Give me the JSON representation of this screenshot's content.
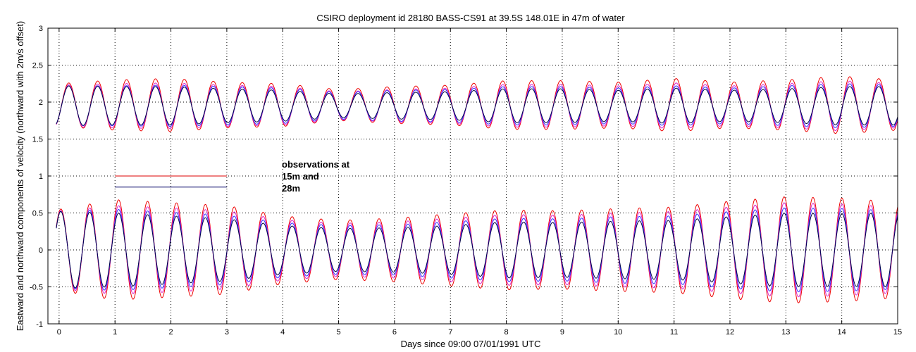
{
  "chart_data": {
    "type": "line",
    "title": "CSIRO deployment id 28180 BASS-CS91 at 39.5S 148.01E in 47m of water",
    "xlabel": "Days since 09:00 07/01/1991 UTC",
    "ylabel": "Eastward  and northward components of velocity (northward with 2m/s offset)",
    "xlim": [
      -0.2,
      15
    ],
    "ylim": [
      -1,
      3
    ],
    "x_ticks": [
      "0",
      "1",
      "2",
      "3",
      "4",
      "5",
      "6",
      "7",
      "8",
      "9",
      "10",
      "11",
      "12",
      "13",
      "14",
      "15"
    ],
    "y_ticks": [
      "-1",
      "-0.5",
      "0",
      "0.5",
      "1",
      "1.5",
      "2",
      "2.5",
      "3"
    ],
    "grid": "dotted",
    "annotation": {
      "lines": [
        "observations at",
        "15m and",
        "28m"
      ],
      "x": 4.0,
      "y": 1.0
    },
    "legend_key": [
      {
        "color": "#dd0000",
        "x": [
          1,
          3
        ],
        "y": 1.0
      },
      {
        "color": "#000066",
        "x": [
          1,
          3
        ],
        "y": 0.85
      }
    ],
    "tidal_period_days": 0.5175,
    "x_range": [
      -0.05,
      15.0
    ],
    "series": [
      {
        "color": "#ee0000",
        "component": "northward_offset",
        "mean": 1.96,
        "amplitude": [
          [
            0,
            0.29
          ],
          [
            1,
            0.34
          ],
          [
            2,
            0.36
          ],
          [
            3,
            0.31
          ],
          [
            4,
            0.29
          ],
          [
            5,
            0.21
          ],
          [
            6,
            0.25
          ],
          [
            7,
            0.27
          ],
          [
            8,
            0.33
          ],
          [
            9,
            0.33
          ],
          [
            10,
            0.31
          ],
          [
            11,
            0.36
          ],
          [
            12,
            0.31
          ],
          [
            13,
            0.34
          ],
          [
            14,
            0.39
          ],
          [
            15,
            0.34
          ]
        ]
      },
      {
        "color": "#dd22cc",
        "component": "northward_offset",
        "mean": 1.95,
        "amplitude": [
          [
            0,
            0.28
          ],
          [
            1,
            0.3
          ],
          [
            2,
            0.31
          ],
          [
            3,
            0.28
          ],
          [
            4,
            0.26
          ],
          [
            5,
            0.19
          ],
          [
            6,
            0.22
          ],
          [
            7,
            0.24
          ],
          [
            8,
            0.29
          ],
          [
            9,
            0.29
          ],
          [
            10,
            0.27
          ],
          [
            11,
            0.31
          ],
          [
            12,
            0.27
          ],
          [
            13,
            0.3
          ],
          [
            14,
            0.34
          ],
          [
            15,
            0.3
          ]
        ]
      },
      {
        "color": "#3333ff",
        "component": "northward_offset",
        "mean": 1.95,
        "amplitude": [
          [
            0,
            0.27
          ],
          [
            1,
            0.27
          ],
          [
            2,
            0.28
          ],
          [
            3,
            0.26
          ],
          [
            4,
            0.24
          ],
          [
            5,
            0.18
          ],
          [
            6,
            0.21
          ],
          [
            7,
            0.22
          ],
          [
            8,
            0.26
          ],
          [
            9,
            0.26
          ],
          [
            10,
            0.24
          ],
          [
            11,
            0.27
          ],
          [
            12,
            0.24
          ],
          [
            13,
            0.27
          ],
          [
            14,
            0.3
          ],
          [
            15,
            0.28
          ]
        ]
      },
      {
        "color": "#000044",
        "component": "northward_offset",
        "mean": 1.95,
        "amplitude": [
          [
            0,
            0.27
          ],
          [
            1,
            0.26
          ],
          [
            2,
            0.26
          ],
          [
            3,
            0.23
          ],
          [
            4,
            0.21
          ],
          [
            5,
            0.16
          ],
          [
            6,
            0.18
          ],
          [
            7,
            0.19
          ],
          [
            8,
            0.23
          ],
          [
            9,
            0.23
          ],
          [
            10,
            0.21
          ],
          [
            11,
            0.24
          ],
          [
            12,
            0.21
          ],
          [
            13,
            0.23
          ],
          [
            14,
            0.26
          ],
          [
            15,
            0.26
          ]
        ]
      },
      {
        "color": "#ee0000",
        "component": "eastward",
        "mean": 0.0,
        "amplitude": [
          [
            0,
            0.55
          ],
          [
            1,
            0.68
          ],
          [
            2,
            0.64
          ],
          [
            3,
            0.6
          ],
          [
            4,
            0.46
          ],
          [
            5,
            0.4
          ],
          [
            6,
            0.43
          ],
          [
            7,
            0.49
          ],
          [
            8,
            0.54
          ],
          [
            9,
            0.53
          ],
          [
            10,
            0.56
          ],
          [
            11,
            0.58
          ],
          [
            12,
            0.66
          ],
          [
            13,
            0.72
          ],
          [
            14,
            0.7
          ],
          [
            15,
            0.65
          ]
        ]
      },
      {
        "color": "#dd22cc",
        "component": "eastward",
        "mean": 0.0,
        "amplitude": [
          [
            0,
            0.53
          ],
          [
            1,
            0.6
          ],
          [
            2,
            0.57
          ],
          [
            3,
            0.53
          ],
          [
            4,
            0.41
          ],
          [
            5,
            0.36
          ],
          [
            6,
            0.38
          ],
          [
            7,
            0.43
          ],
          [
            8,
            0.48
          ],
          [
            9,
            0.47
          ],
          [
            10,
            0.5
          ],
          [
            11,
            0.52
          ],
          [
            12,
            0.58
          ],
          [
            13,
            0.64
          ],
          [
            14,
            0.62
          ],
          [
            15,
            0.58
          ]
        ]
      },
      {
        "color": "#3333ff",
        "component": "eastward",
        "mean": 0.0,
        "amplitude": [
          [
            0,
            0.52
          ],
          [
            1,
            0.55
          ],
          [
            2,
            0.51
          ],
          [
            3,
            0.47
          ],
          [
            4,
            0.37
          ],
          [
            5,
            0.33
          ],
          [
            6,
            0.34
          ],
          [
            7,
            0.38
          ],
          [
            8,
            0.43
          ],
          [
            9,
            0.42
          ],
          [
            10,
            0.45
          ],
          [
            11,
            0.46
          ],
          [
            12,
            0.52
          ],
          [
            13,
            0.57
          ],
          [
            14,
            0.56
          ],
          [
            15,
            0.53
          ]
        ]
      },
      {
        "color": "#000044",
        "component": "eastward",
        "mean": 0.0,
        "amplitude": [
          [
            0,
            0.52
          ],
          [
            1,
            0.5
          ],
          [
            2,
            0.46
          ],
          [
            3,
            0.42
          ],
          [
            4,
            0.33
          ],
          [
            5,
            0.29
          ],
          [
            6,
            0.3
          ],
          [
            7,
            0.33
          ],
          [
            8,
            0.38
          ],
          [
            9,
            0.37
          ],
          [
            10,
            0.39
          ],
          [
            11,
            0.4
          ],
          [
            12,
            0.45
          ],
          [
            13,
            0.5
          ],
          [
            14,
            0.49
          ],
          [
            15,
            0.5
          ]
        ]
      }
    ]
  }
}
